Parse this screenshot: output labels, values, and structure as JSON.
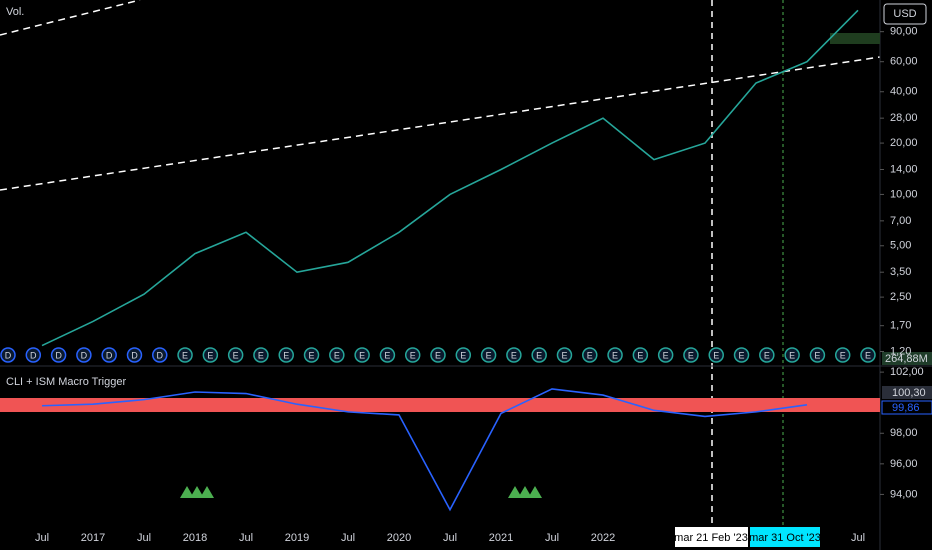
{
  "ui": {
    "volume_title": "Vol.",
    "currency": "USD",
    "volume_tag": "264,88M",
    "indicator_title": "CLI + ISM Macro Trigger",
    "threshold_tag": "100,30",
    "last_value_tag": "99,86",
    "crosshair_1": "mar 21 Feb '23",
    "crosshair_2": "mar 31 Oct '23"
  },
  "events": [
    "D",
    "D",
    "D",
    "D",
    "D",
    "D",
    "D",
    "E",
    "E",
    "E",
    "E",
    "E",
    "E",
    "E",
    "E",
    "E",
    "E",
    "E",
    "E",
    "E",
    "E",
    "E",
    "E",
    "E",
    "E",
    "E",
    "E",
    "E",
    "E",
    "E",
    "E",
    "E",
    "E",
    "E",
    "E"
  ],
  "chart_data": [
    {
      "type": "line",
      "log_scale": true,
      "ylim": [
        1,
        138
      ],
      "yticks": [
        {
          "value": 90,
          "label": "90,00"
        },
        {
          "value": 60,
          "label": "60,00"
        },
        {
          "value": 40,
          "label": "40,00"
        },
        {
          "value": 28,
          "label": "28,00"
        },
        {
          "value": 20,
          "label": "20,00"
        },
        {
          "value": 14,
          "label": "14,00"
        },
        {
          "value": 10,
          "label": "10,00"
        },
        {
          "value": 7,
          "label": "7,00"
        },
        {
          "value": 5,
          "label": "5,00"
        },
        {
          "value": 3.5,
          "label": "3,50"
        },
        {
          "value": 2.5,
          "label": "2,50"
        },
        {
          "value": 1.7,
          "label": "1,70"
        },
        {
          "value": 1.2,
          "label": "1,20"
        }
      ],
      "series": [
        {
          "color": "#26a69a",
          "values": [
            1.3,
            1.8,
            2.6,
            4.5,
            6.0,
            3.5,
            4.0,
            6.0,
            10,
            14,
            20,
            28,
            16,
            20,
            45,
            60,
            120
          ]
        }
      ]
    },
    {
      "type": "line",
      "ylim": [
        92,
        102.4
      ],
      "yticks": [
        {
          "value": 102,
          "label": "102,00"
        },
        {
          "value": 98,
          "label": "98,00"
        },
        {
          "value": 96,
          "label": "96,00"
        },
        {
          "value": 94,
          "label": "94,00"
        }
      ],
      "categories": [
        "Jul",
        "2017",
        "Jul",
        "2018",
        "Jul",
        "2019",
        "Jul",
        "2020",
        "Jul",
        "2021",
        "Jul",
        "2022",
        null,
        null,
        null,
        null,
        "Jul"
      ],
      "series": [
        {
          "color": "#2962ff",
          "values": [
            99.8,
            99.9,
            100.2,
            100.7,
            100.6,
            99.9,
            99.4,
            99.2,
            93.0,
            99.3,
            100.9,
            100.5,
            99.5,
            99.1,
            99.4,
            99.86,
            null
          ]
        }
      ]
    }
  ]
}
